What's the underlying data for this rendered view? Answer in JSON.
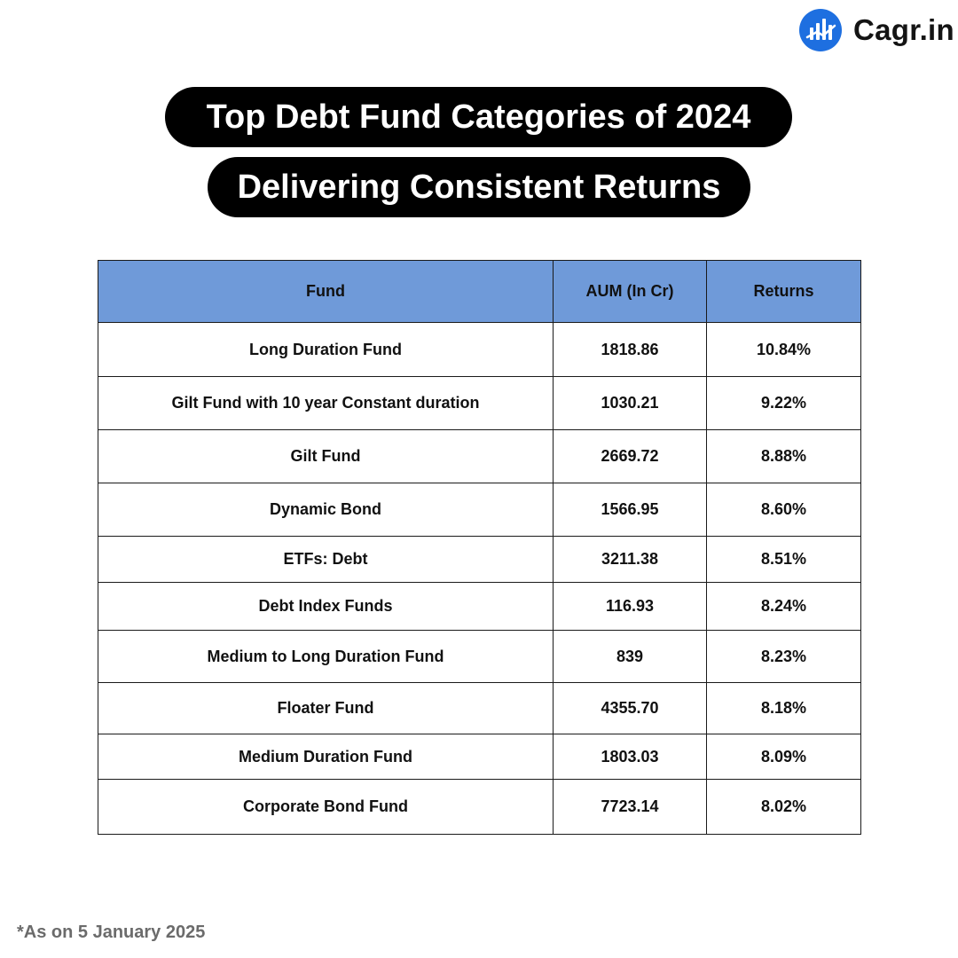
{
  "brand": {
    "name": "Cagr.in",
    "icon": "bar-chart-circle-icon",
    "color": "#1e6fe0"
  },
  "heading": {
    "line1": "Top Debt Fund Categories of 2024",
    "line2": "Delivering Consistent Returns"
  },
  "table": {
    "header_color": "#6f9ad9",
    "columns": [
      "Fund",
      "AUM (In Cr)",
      "Returns"
    ],
    "rows": [
      {
        "fund": "Long Duration Fund",
        "aum": "1818.86",
        "returns": "10.84%"
      },
      {
        "fund": "Gilt Fund with 10 year Constant duration",
        "aum": "1030.21",
        "returns": "9.22%"
      },
      {
        "fund": "Gilt Fund",
        "aum": "2669.72",
        "returns": "8.88%"
      },
      {
        "fund": "Dynamic Bond",
        "aum": "1566.95",
        "returns": "8.60%"
      },
      {
        "fund": "ETFs: Debt",
        "aum": "3211.38",
        "returns": "8.51%"
      },
      {
        "fund": "Debt Index Funds",
        "aum": "116.93",
        "returns": "8.24%"
      },
      {
        "fund": "Medium to Long Duration Fund",
        "aum": "839",
        "returns": "8.23%"
      },
      {
        "fund": "Floater Fund",
        "aum": "4355.70",
        "returns": "8.18%"
      },
      {
        "fund": "Medium Duration Fund",
        "aum": "1803.03",
        "returns": "8.09%"
      },
      {
        "fund": "Corporate Bond Fund",
        "aum": "7723.14",
        "returns": "8.02%"
      }
    ]
  },
  "footnote": "*As on 5 January 2025"
}
